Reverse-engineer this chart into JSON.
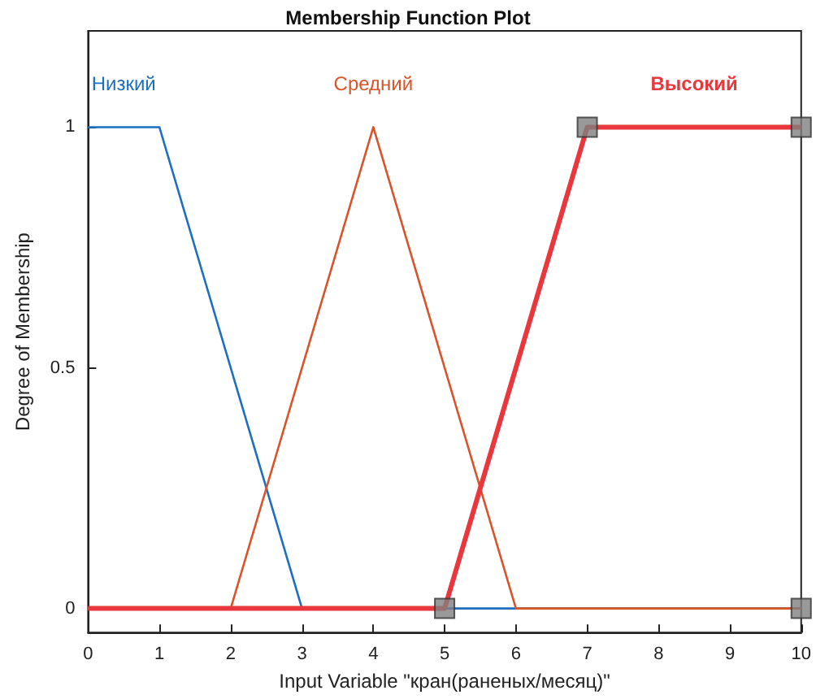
{
  "chart_data": {
    "type": "line",
    "title": "Membership Function Plot",
    "xlabel": "Input Variable \"кран(раненых/месяц)\"",
    "ylabel": "Degree of Membership",
    "xlim": [
      0,
      10
    ],
    "ylim": [
      -0.05,
      1.2
    ],
    "xticks": [
      0,
      1,
      2,
      3,
      4,
      5,
      6,
      7,
      8,
      9,
      10
    ],
    "yticks": [
      0,
      0.5,
      1
    ],
    "marker": "none",
    "line_style": "solid",
    "series": [
      {
        "name": "Низкий",
        "color": "#1f6fc0",
        "x": [
          0,
          1,
          3,
          10
        ],
        "values": [
          1,
          1,
          0,
          0
        ]
      },
      {
        "name": "Средний",
        "color": "#d9542a",
        "x": [
          0,
          2,
          4,
          6,
          10
        ],
        "values": [
          0,
          0,
          1,
          0,
          0
        ]
      },
      {
        "name": "Высокий",
        "color": "#e8383d",
        "x": [
          0,
          5,
          7,
          10
        ],
        "values": [
          0,
          0,
          1,
          1
        ]
      },
      {
        "type": "scatter",
        "marker": "square",
        "color": "#808080",
        "x": [
          5,
          7,
          10,
          10
        ],
        "values": [
          0,
          1,
          1,
          0
        ]
      }
    ]
  }
}
